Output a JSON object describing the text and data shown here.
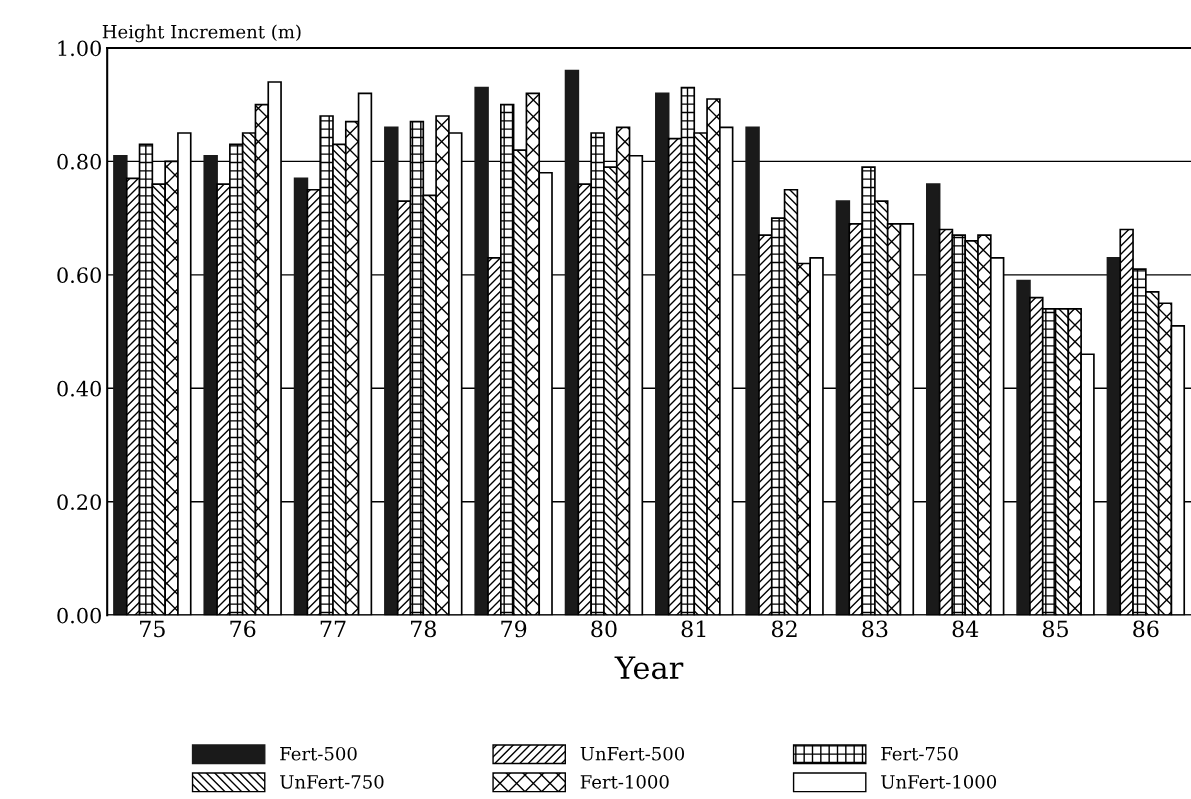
{
  "chart_data": {
    "type": "bar",
    "ylabel": "Height Increment (m)",
    "xlabel": "Year",
    "categories": [
      "75",
      "76",
      "77",
      "78",
      "79",
      "80",
      "81",
      "82",
      "83",
      "84",
      "85",
      "86"
    ],
    "series": [
      {
        "name": "Fert-500",
        "color": "#1a1a1a",
        "values": [
          0.81,
          0.81,
          0.77,
          0.86,
          0.93,
          0.96,
          0.92,
          0.86,
          0.73,
          0.76,
          0.59,
          0.63
        ]
      },
      {
        "name": "UnFert-500",
        "color": "#000000",
        "values": [
          0.77,
          0.76,
          0.75,
          0.73,
          0.63,
          0.76,
          0.84,
          0.67,
          0.69,
          0.68,
          0.56,
          0.68
        ]
      },
      {
        "name": "Fert-750",
        "color": "#000000",
        "values": [
          0.83,
          0.83,
          0.88,
          0.87,
          0.9,
          0.85,
          0.93,
          0.7,
          0.79,
          0.67,
          0.54,
          0.61
        ]
      },
      {
        "name": "UnFert-750",
        "color": "#000000",
        "values": [
          0.76,
          0.85,
          0.83,
          0.74,
          0.82,
          0.79,
          0.85,
          0.75,
          0.73,
          0.66,
          0.54,
          0.57
        ]
      },
      {
        "name": "Fert-1000",
        "color": "#000000",
        "values": [
          0.8,
          0.9,
          0.87,
          0.88,
          0.92,
          0.86,
          0.91,
          0.62,
          0.69,
          0.67,
          0.54,
          0.55
        ]
      },
      {
        "name": "UnFert-1000",
        "color": "#000000",
        "values": [
          0.85,
          0.94,
          0.92,
          0.85,
          0.78,
          0.81,
          0.86,
          0.63,
          0.69,
          0.63,
          0.46,
          0.51
        ]
      }
    ],
    "ylim": [
      0,
      1
    ],
    "yticks": [
      {
        "value": 0,
        "label": "0.00"
      },
      {
        "value": 0.2,
        "label": "0.20"
      },
      {
        "value": 0.4,
        "label": "0.40"
      },
      {
        "value": 0.6,
        "label": "0.60"
      },
      {
        "value": 0.8,
        "label": "0.80"
      },
      {
        "value": 1,
        "label": "1.00"
      }
    ],
    "grid": "y",
    "legend": "bottom"
  }
}
